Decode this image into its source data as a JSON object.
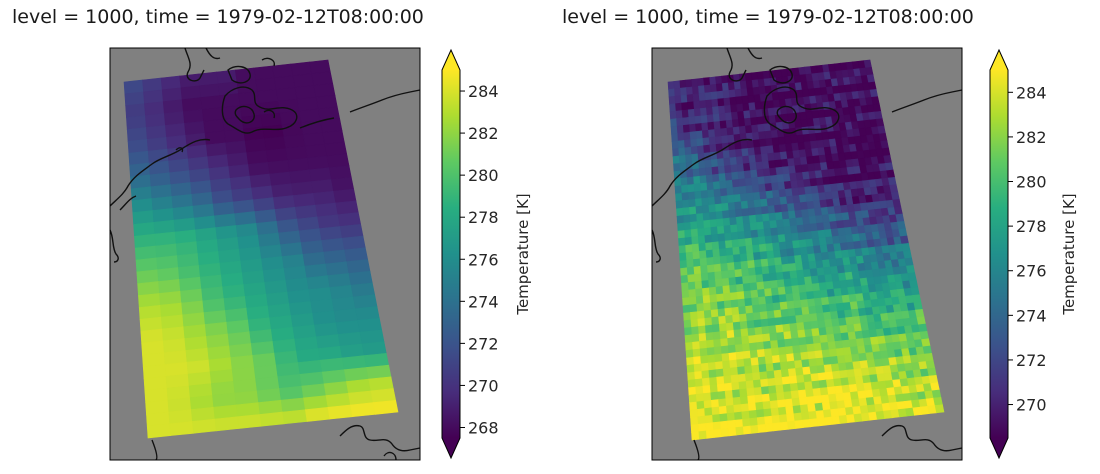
{
  "chart_data": [
    {
      "type": "heatmap",
      "title": "level = 1000, time = 1979-02-12T08:00:00",
      "colorbar": {
        "label": "Temperature [K]",
        "ticks": [
          268,
          270,
          272,
          274,
          276,
          278,
          280,
          282,
          284
        ],
        "range": [
          267.5,
          285
        ],
        "extend": "both"
      },
      "colormap": "viridis",
      "background": "#808080",
      "grid": false,
      "field": "smooth",
      "rows": [
        [
          272,
          271,
          270,
          269,
          269,
          269,
          268,
          268,
          268,
          268,
          268
        ],
        [
          271,
          270,
          269,
          268,
          268,
          268,
          268,
          268,
          268,
          268,
          268
        ],
        [
          272,
          271,
          270,
          269,
          268,
          268,
          267.5,
          267.5,
          268,
          268,
          268
        ],
        [
          274,
          273,
          272,
          271,
          270,
          269,
          268,
          268,
          268,
          268,
          268
        ],
        [
          277,
          276,
          275,
          274,
          272,
          271,
          270,
          269,
          269,
          269,
          268
        ],
        [
          279,
          279,
          279,
          278,
          277,
          276,
          274,
          272,
          271,
          270,
          270
        ],
        [
          281,
          281,
          280,
          279,
          278,
          277,
          276,
          275,
          273,
          273,
          272
        ],
        [
          283,
          283,
          282,
          280,
          279,
          278,
          277,
          276,
          276,
          275,
          274
        ],
        [
          284,
          284,
          283,
          282,
          281,
          279,
          278,
          277,
          276,
          276,
          276
        ],
        [
          284,
          284,
          284,
          283,
          282,
          281,
          279,
          278,
          278,
          277,
          277
        ],
        [
          284,
          284,
          283,
          282,
          282,
          281,
          280,
          281,
          282,
          283,
          283
        ],
        [
          284,
          284,
          284,
          284,
          284,
          284,
          284,
          285,
          285,
          285,
          285
        ]
      ]
    },
    {
      "type": "heatmap",
      "title": "level = 1000, time = 1979-02-12T08:00:00",
      "colorbar": {
        "label": "Temperature [K]",
        "ticks": [
          270,
          272,
          274,
          276,
          278,
          280,
          282,
          284
        ],
        "range": [
          268.5,
          285
        ],
        "extend": "both"
      },
      "colormap": "viridis",
      "background": "#808080",
      "grid": false,
      "field": "noisy",
      "rows": [
        [
          272,
          271,
          270,
          270,
          269,
          269,
          269,
          269,
          269,
          269,
          269
        ],
        [
          271,
          270,
          270,
          269,
          269,
          269,
          269,
          269,
          269,
          269,
          269
        ],
        [
          274,
          272,
          271,
          270,
          269,
          269,
          269,
          269,
          269,
          269,
          269
        ],
        [
          276,
          275,
          273,
          272,
          271,
          270,
          270,
          269,
          269,
          269,
          269
        ],
        [
          277,
          277,
          276,
          275,
          274,
          273,
          272,
          271,
          270,
          270,
          270
        ],
        [
          279,
          279,
          278,
          278,
          277,
          276,
          275,
          274,
          273,
          272,
          272
        ],
        [
          281,
          281,
          280,
          280,
          279,
          278,
          277,
          277,
          276,
          275,
          275
        ],
        [
          282,
          282,
          282,
          281,
          280,
          280,
          279,
          279,
          278,
          278,
          277
        ],
        [
          283,
          283,
          283,
          282,
          282,
          281,
          281,
          281,
          280,
          280,
          280
        ],
        [
          284,
          284,
          284,
          283,
          283,
          283,
          283,
          282,
          282,
          282,
          281
        ],
        [
          284,
          284,
          284,
          284,
          284,
          284,
          284,
          284,
          284,
          283,
          283
        ],
        [
          284,
          285,
          285,
          285,
          285,
          285,
          285,
          285,
          284,
          284,
          284
        ]
      ]
    }
  ]
}
